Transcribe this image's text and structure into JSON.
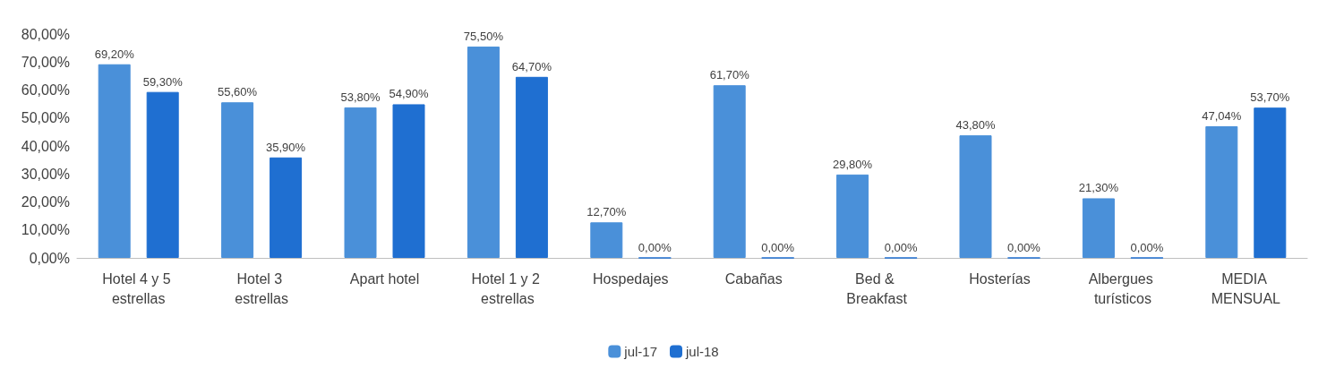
{
  "chart_data": {
    "type": "bar",
    "categories": [
      "Hotel 4 y 5 estrellas",
      "Hotel 3 estrellas",
      "Apart hotel",
      "Hotel 1 y 2 estrellas",
      "Hospedajes",
      "Cabañas",
      "Bed & Breakfast",
      "Hosterías",
      "Albergues turísticos",
      "MEDIA MENSUAL"
    ],
    "series": [
      {
        "name": "jul-17",
        "color": "#4a90d9",
        "values": [
          69.2,
          55.6,
          53.8,
          75.5,
          12.7,
          61.7,
          29.8,
          43.8,
          21.3,
          47.04
        ],
        "value_labels": [
          "69,20%",
          "55,60%",
          "53,80%",
          "75,50%",
          "12,70%",
          "61,70%",
          "29,80%",
          "43,80%",
          "21,30%",
          "47,04%"
        ]
      },
      {
        "name": "jul-18",
        "color": "#1f6fd1",
        "values": [
          59.3,
          35.9,
          54.9,
          64.7,
          0,
          0,
          0,
          0,
          0,
          53.7
        ],
        "value_labels": [
          "59,30%",
          "35,90%",
          "54,90%",
          "64,70%",
          "0,00%",
          "0,00%",
          "0,00%",
          "0,00%",
          "0,00%",
          "53,70%"
        ]
      }
    ],
    "ylim": [
      0,
      80
    ],
    "yticks": [
      {
        "value": 0,
        "label": "0,00%"
      },
      {
        "value": 10,
        "label": "10,00%"
      },
      {
        "value": 20,
        "label": "20,00%"
      },
      {
        "value": 30,
        "label": "30,00%"
      },
      {
        "value": 40,
        "label": "40,00%"
      },
      {
        "value": 50,
        "label": "50,00%"
      },
      {
        "value": 60,
        "label": "60,00%"
      },
      {
        "value": 70,
        "label": "70,00%"
      },
      {
        "value": 80,
        "label": "80,00%"
      }
    ],
    "grid": false,
    "legend": "bottom"
  }
}
